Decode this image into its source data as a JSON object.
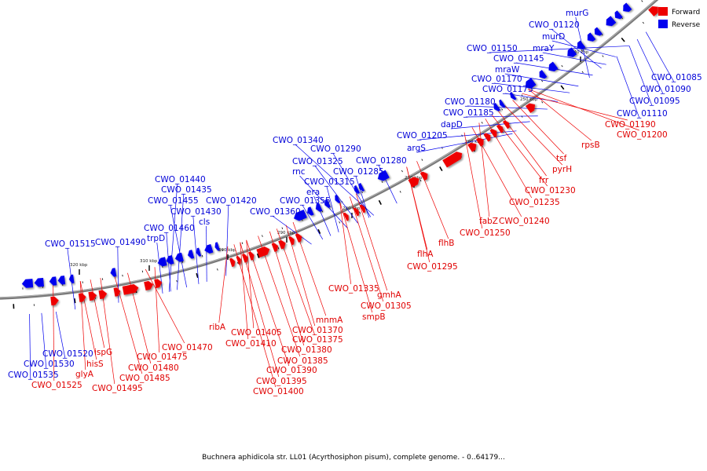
{
  "caption": "Buchnera aphidicola str. LL01 (Acyrthosiphon pisum), complete genome. - 0..64179...",
  "legend": [
    {
      "label": "Forward",
      "color": "#ee0000"
    },
    {
      "label": "Reverse",
      "color": "#0000ee"
    }
  ],
  "ticks": [
    "240 kbp",
    "250 kbp",
    "260 kbp",
    "270 kbp",
    "280 kbp",
    "290 kbp",
    "300 kbp",
    "310 kbp",
    "320 kbp"
  ],
  "reverse_labels": [
    "murG",
    "CWO_01120",
    "murD",
    "CWO_01150",
    "mraY",
    "CWO_01145",
    "mraW",
    "CWO_01170",
    "CWO_01175",
    "CWO_01180",
    "CWO_01185",
    "dapD",
    "CWO_01205",
    "argS",
    "CWO_01340",
    "CWO_01290",
    "CWO_01325",
    "rnc",
    "CWO_01280",
    "CWO_01315",
    "CWO_01285",
    "era",
    "CWO_01440",
    "CWO_01435",
    "CWO_01455",
    "CWO_01420",
    "CWO_01355",
    "CWO_01430",
    "CWO_01360",
    "cls",
    "CWO_01460",
    "trpD",
    "CWO_01515",
    "CWO_01490",
    "CWO_01085",
    "CWO_01090",
    "CWO_01095",
    "CWO_01110",
    "CWO_01520",
    "CWO_01530",
    "CWO_01535"
  ],
  "forward_labels": [
    "CWO_01190",
    "CWO_01200",
    "rpsB",
    "tsf",
    "pyrH",
    "frr",
    "CWO_01230",
    "CWO_01235",
    "fabZ",
    "CWO_01240",
    "CWO_01250",
    "flhB",
    "flhA",
    "CWO_01295",
    "CWO_01335",
    "gmhA",
    "CWO_01305",
    "smpB",
    "mnmA",
    "CWO_01370",
    "CWO_01375",
    "CWO_01380",
    "CWO_01385",
    "CWO_01390",
    "CWO_01395",
    "CWO_01400",
    "CWO_01405",
    "CWO_01410",
    "ribA",
    "CWO_01470",
    "CWO_01475",
    "CWO_01480",
    "CWO_01485",
    "CWO_01495",
    "ispG",
    "hisS",
    "glyA",
    "CWO_01525"
  ]
}
